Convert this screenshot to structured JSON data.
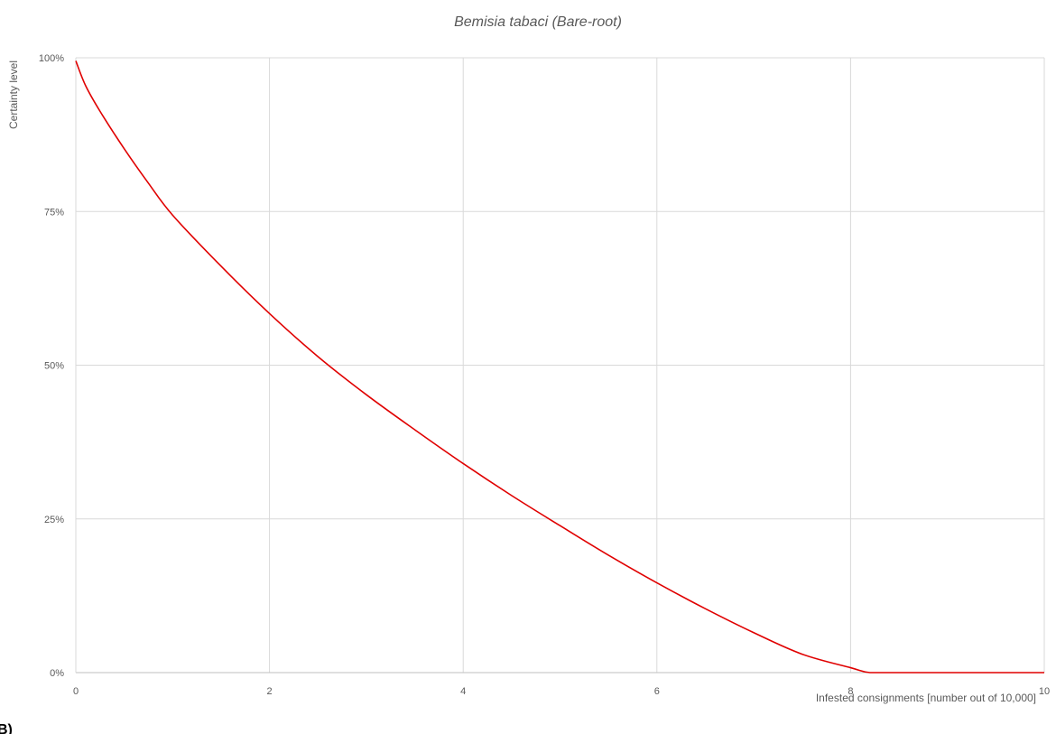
{
  "chart_data": {
    "type": "line",
    "title": "Bemisia tabaci (Bare-root)",
    "xlabel": "Infested consignments [number out of 10,000]",
    "ylabel": "Certainty level",
    "xlim": [
      0,
      10
    ],
    "ylim": [
      0,
      100
    ],
    "x_ticks": [
      "0",
      "2",
      "4",
      "6",
      "8",
      "10"
    ],
    "y_ticks": [
      "0%",
      "25%",
      "50%",
      "75%",
      "100%"
    ],
    "grid": true,
    "legend": "none",
    "panel_label": "B)",
    "series": [
      {
        "color": "#e00000",
        "x": [
          0,
          0.1,
          0.25,
          0.5,
          0.75,
          1,
          1.5,
          2,
          2.5,
          3,
          3.5,
          4,
          4.5,
          5,
          5.5,
          6,
          6.5,
          7,
          7.5,
          8,
          8.2,
          8.5,
          9,
          9.5,
          10
        ],
        "y": [
          99.5,
          95.5,
          91.3,
          85.2,
          79.6,
          74.4,
          66.1,
          58.4,
          51.4,
          45.2,
          39.5,
          34.0,
          28.8,
          23.9,
          19.1,
          14.6,
          10.4,
          6.5,
          3.0,
          0.8,
          0,
          0,
          0,
          0,
          0
        ]
      }
    ]
  }
}
